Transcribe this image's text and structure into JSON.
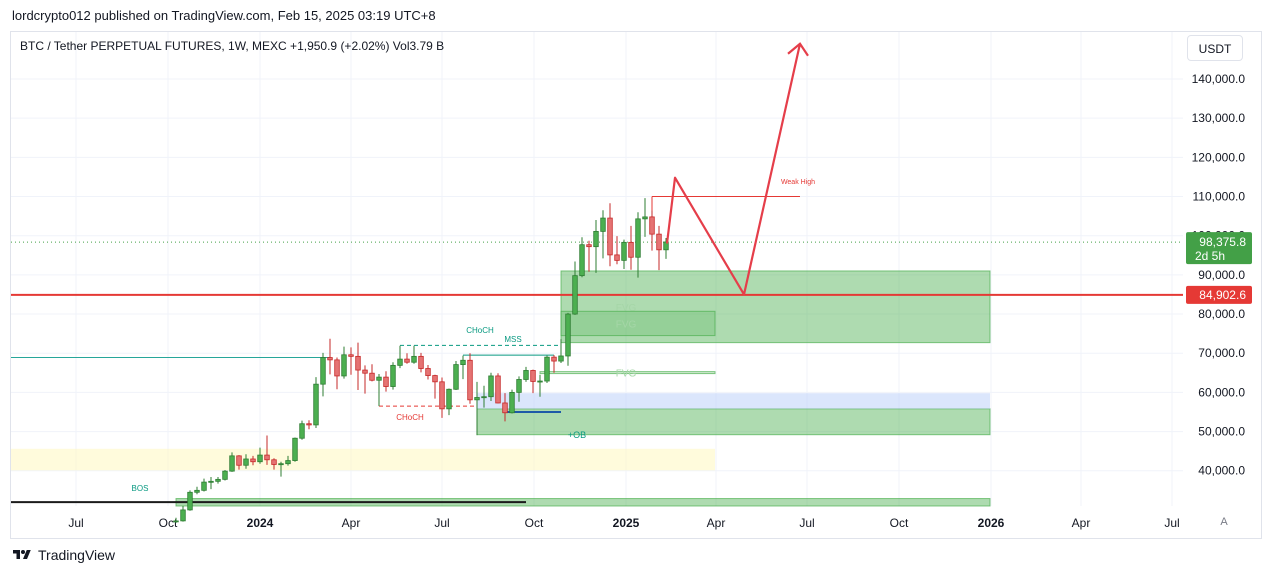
{
  "header": {
    "publisher": "lordcrypto012 published on TradingView.com, Feb 15, 2025 03:19 UTC+8",
    "symbol_line": "BTC / Tether PERPETUAL FUTURES, 1W, MEXC  +1,950.9 (+2.02%)  Vol3.79 B"
  },
  "toolbar": {
    "currency": "USDT",
    "auto_label": "A"
  },
  "footer": {
    "brand": "TradingView"
  },
  "colors": {
    "up": "#4caf50",
    "down": "#e57373",
    "zone_green": "#4caf50",
    "support_line": "#e53935",
    "arrow": "#e53e4a",
    "blue_zone": "#b7cdfa",
    "yellow_zone": "#fff9c4",
    "current_price_bg": "#43a047",
    "level_bg": "#e53935",
    "choch_teal": "#089981",
    "choch_red": "#e53935"
  },
  "chart_data": {
    "type": "candlestick",
    "title": "BTC / Tether PERPETUAL FUTURES, 1W, MEXC",
    "x_ticks": [
      "Jul",
      "Oct",
      "2024",
      "Apr",
      "Jul",
      "Oct",
      "2025",
      "Apr",
      "Jul",
      "Oct",
      "2026",
      "Apr",
      "Jul"
    ],
    "y_ticks": [
      "40,000.0",
      "50,000.0",
      "60,000.0",
      "70,000.0",
      "80,000.0",
      "90,000.0",
      "100,000.0",
      "110,000.0",
      "120,000.0",
      "130,000.0",
      "140,000.0"
    ],
    "ylim": [
      31000,
      152000
    ],
    "current_price": {
      "value": 98375.8,
      "label": "98,375.8",
      "countdown": "2d 5h"
    },
    "level": {
      "value": 84902.6,
      "label": "84,902.6"
    },
    "candles": [
      {
        "date": "2023-10-09",
        "o": 27000,
        "h": 28000,
        "l": 26700,
        "c": 27200
      },
      {
        "date": "2023-10-16",
        "o": 27200,
        "h": 31000,
        "l": 27000,
        "c": 30000
      },
      {
        "date": "2023-10-23",
        "o": 30000,
        "h": 35000,
        "l": 29800,
        "c": 34500
      },
      {
        "date": "2023-10-30",
        "o": 34500,
        "h": 35900,
        "l": 34000,
        "c": 35000
      },
      {
        "date": "2023-11-06",
        "o": 35000,
        "h": 38000,
        "l": 34700,
        "c": 37100
      },
      {
        "date": "2023-11-13",
        "o": 37100,
        "h": 38400,
        "l": 35300,
        "c": 37300
      },
      {
        "date": "2023-11-20",
        "o": 37300,
        "h": 38400,
        "l": 36700,
        "c": 37800
      },
      {
        "date": "2023-11-27",
        "o": 37800,
        "h": 40200,
        "l": 37500,
        "c": 39900
      },
      {
        "date": "2023-12-04",
        "o": 39900,
        "h": 44700,
        "l": 39700,
        "c": 43800
      },
      {
        "date": "2023-12-11",
        "o": 43800,
        "h": 44000,
        "l": 40300,
        "c": 41400
      },
      {
        "date": "2023-12-18",
        "o": 41400,
        "h": 44200,
        "l": 40500,
        "c": 43000
      },
      {
        "date": "2023-12-25",
        "o": 43000,
        "h": 43800,
        "l": 41400,
        "c": 42300
      },
      {
        "date": "2024-01-01",
        "o": 42300,
        "h": 45900,
        "l": 41800,
        "c": 44000
      },
      {
        "date": "2024-01-08",
        "o": 44000,
        "h": 49000,
        "l": 41500,
        "c": 42800
      },
      {
        "date": "2024-01-15",
        "o": 42800,
        "h": 43200,
        "l": 40300,
        "c": 41600
      },
      {
        "date": "2024-01-22",
        "o": 41600,
        "h": 42300,
        "l": 38500,
        "c": 41800
      },
      {
        "date": "2024-01-29",
        "o": 41800,
        "h": 43800,
        "l": 41300,
        "c": 42600
      },
      {
        "date": "2024-02-05",
        "o": 42600,
        "h": 48500,
        "l": 42300,
        "c": 48300
      },
      {
        "date": "2024-02-12",
        "o": 48300,
        "h": 52800,
        "l": 47900,
        "c": 52000
      },
      {
        "date": "2024-02-19",
        "o": 52000,
        "h": 52900,
        "l": 50600,
        "c": 51700
      },
      {
        "date": "2024-02-26",
        "o": 51700,
        "h": 63900,
        "l": 50900,
        "c": 62100
      },
      {
        "date": "2024-03-04",
        "o": 62100,
        "h": 70100,
        "l": 59000,
        "c": 68900
      },
      {
        "date": "2024-03-11",
        "o": 68900,
        "h": 73700,
        "l": 64600,
        "c": 68300
      },
      {
        "date": "2024-03-18",
        "o": 68300,
        "h": 68900,
        "l": 60800,
        "c": 64200
      },
      {
        "date": "2024-03-25",
        "o": 64200,
        "h": 71700,
        "l": 63500,
        "c": 69600
      },
      {
        "date": "2024-04-01",
        "o": 69600,
        "h": 71500,
        "l": 64500,
        "c": 69200
      },
      {
        "date": "2024-04-08",
        "o": 69200,
        "h": 72700,
        "l": 60600,
        "c": 65700
      },
      {
        "date": "2024-04-15",
        "o": 65700,
        "h": 66900,
        "l": 59700,
        "c": 64900
      },
      {
        "date": "2024-04-22",
        "o": 64900,
        "h": 67200,
        "l": 62800,
        "c": 63100
      },
      {
        "date": "2024-04-29",
        "o": 63100,
        "h": 64700,
        "l": 56500,
        "c": 63900
      },
      {
        "date": "2024-05-06",
        "o": 63900,
        "h": 65400,
        "l": 60200,
        "c": 61500
      },
      {
        "date": "2024-05-13",
        "o": 61500,
        "h": 67700,
        "l": 60700,
        "c": 66900
      },
      {
        "date": "2024-05-20",
        "o": 66900,
        "h": 71900,
        "l": 66200,
        "c": 68500
      },
      {
        "date": "2024-05-27",
        "o": 68500,
        "h": 70000,
        "l": 67300,
        "c": 67700
      },
      {
        "date": "2024-06-03",
        "o": 67700,
        "h": 71900,
        "l": 67300,
        "c": 69200
      },
      {
        "date": "2024-06-10",
        "o": 69200,
        "h": 70100,
        "l": 65100,
        "c": 66100
      },
      {
        "date": "2024-06-17",
        "o": 66100,
        "h": 67000,
        "l": 63300,
        "c": 64300
      },
      {
        "date": "2024-06-24",
        "o": 64300,
        "h": 64500,
        "l": 58400,
        "c": 62700
      },
      {
        "date": "2024-07-01",
        "o": 62700,
        "h": 63800,
        "l": 53500,
        "c": 55800
      },
      {
        "date": "2024-07-08",
        "o": 55800,
        "h": 61000,
        "l": 54200,
        "c": 60800
      },
      {
        "date": "2024-07-15",
        "o": 60800,
        "h": 68000,
        "l": 60600,
        "c": 67100
      },
      {
        "date": "2024-07-22",
        "o": 67100,
        "h": 69400,
        "l": 63400,
        "c": 68200
      },
      {
        "date": "2024-07-29",
        "o": 68200,
        "h": 70000,
        "l": 57100,
        "c": 58100
      },
      {
        "date": "2024-08-05",
        "o": 58100,
        "h": 62700,
        "l": 49100,
        "c": 58700
      },
      {
        "date": "2024-08-12",
        "o": 58700,
        "h": 61700,
        "l": 56100,
        "c": 58900
      },
      {
        "date": "2024-08-19",
        "o": 58900,
        "h": 65000,
        "l": 57800,
        "c": 64200
      },
      {
        "date": "2024-08-26",
        "o": 64200,
        "h": 64900,
        "l": 57200,
        "c": 57300
      },
      {
        "date": "2024-09-02",
        "o": 57300,
        "h": 59800,
        "l": 52600,
        "c": 54800
      },
      {
        "date": "2024-09-09",
        "o": 54800,
        "h": 60700,
        "l": 54600,
        "c": 60000
      },
      {
        "date": "2024-09-16",
        "o": 60000,
        "h": 64100,
        "l": 57600,
        "c": 63300
      },
      {
        "date": "2024-09-23",
        "o": 63300,
        "h": 66500,
        "l": 62700,
        "c": 65600
      },
      {
        "date": "2024-09-30",
        "o": 65600,
        "h": 65800,
        "l": 59800,
        "c": 62800
      },
      {
        "date": "2024-10-07",
        "o": 62800,
        "h": 64500,
        "l": 58900,
        "c": 62900
      },
      {
        "date": "2024-10-14",
        "o": 62900,
        "h": 69400,
        "l": 62400,
        "c": 69000
      },
      {
        "date": "2024-10-21",
        "o": 69000,
        "h": 69500,
        "l": 65000,
        "c": 68000
      },
      {
        "date": "2024-10-28",
        "o": 68000,
        "h": 73600,
        "l": 67500,
        "c": 69300
      },
      {
        "date": "2024-11-04",
        "o": 69300,
        "h": 80300,
        "l": 66800,
        "c": 80000
      },
      {
        "date": "2024-11-11",
        "o": 80000,
        "h": 93400,
        "l": 79800,
        "c": 89800
      },
      {
        "date": "2024-11-18",
        "o": 89800,
        "h": 99600,
        "l": 89400,
        "c": 97700
      },
      {
        "date": "2024-11-25",
        "o": 97700,
        "h": 98700,
        "l": 90800,
        "c": 97200
      },
      {
        "date": "2024-12-02",
        "o": 97200,
        "h": 104000,
        "l": 90500,
        "c": 101100
      },
      {
        "date": "2024-12-09",
        "o": 101100,
        "h": 106500,
        "l": 94200,
        "c": 104500
      },
      {
        "date": "2024-12-16",
        "o": 104500,
        "h": 108300,
        "l": 92200,
        "c": 95100
      },
      {
        "date": "2024-12-23",
        "o": 95100,
        "h": 99900,
        "l": 92700,
        "c": 93700
      },
      {
        "date": "2024-12-30",
        "o": 93700,
        "h": 99000,
        "l": 91500,
        "c": 98300
      },
      {
        "date": "2025-01-06",
        "o": 98300,
        "h": 102500,
        "l": 91300,
        "c": 94500
      },
      {
        "date": "2025-01-13",
        "o": 94500,
        "h": 106000,
        "l": 89300,
        "c": 104300
      },
      {
        "date": "2025-01-20",
        "o": 104300,
        "h": 109600,
        "l": 99700,
        "c": 104800
      },
      {
        "date": "2025-01-27",
        "o": 104800,
        "h": 106400,
        "l": 96200,
        "c": 100400
      },
      {
        "date": "2025-02-03",
        "o": 100400,
        "h": 102500,
        "l": 91200,
        "c": 96400
      },
      {
        "date": "2025-02-10",
        "o": 96400,
        "h": 99400,
        "l": 94100,
        "c": 98400
      }
    ],
    "zones": [
      {
        "label": "FVG",
        "x0": "2024-10-28",
        "x1": "2025-12-31",
        "y0": 72700,
        "y1": 91000
      },
      {
        "label": "FVG",
        "x0": "2024-10-28",
        "x1": "2025-03-31",
        "y0": 74500,
        "y1": 80700
      },
      {
        "label": "FVG",
        "x0": "2024-10-07",
        "x1": "2025-03-31",
        "y0": 64800,
        "y1": 65300
      },
      {
        "label": "+OB",
        "x0": "2024-08-05",
        "x1": "2025-12-31",
        "y0": 49200,
        "y1": 55800
      },
      {
        "label": "",
        "x0": "2024-08-05",
        "x1": "2025-12-31",
        "y0": 55800,
        "y1": 59800
      },
      {
        "label": "",
        "x0": "2023-01-01",
        "x1": "2025-03-31",
        "y0": 40100,
        "y1": 45600
      },
      {
        "label": "",
        "x0": "2023-10-09",
        "x1": "2025-12-31",
        "y0": 31000,
        "y1": 32900
      }
    ],
    "annotations": [
      "CHoCH",
      "MSS",
      "CHoCH",
      "+OB",
      "BOS",
      "Weak High",
      "FVG",
      "FVG"
    ],
    "weak_high": {
      "label": "Weak High",
      "value": 110000
    },
    "projection": [
      {
        "date": "2025-02-17",
        "value": 98000
      },
      {
        "date": "2025-02-24",
        "value": 114800
      },
      {
        "date": "2025-04-21",
        "value": 85000
      },
      {
        "date": "2025-07-14",
        "value": 149000
      }
    ],
    "grid": true
  }
}
